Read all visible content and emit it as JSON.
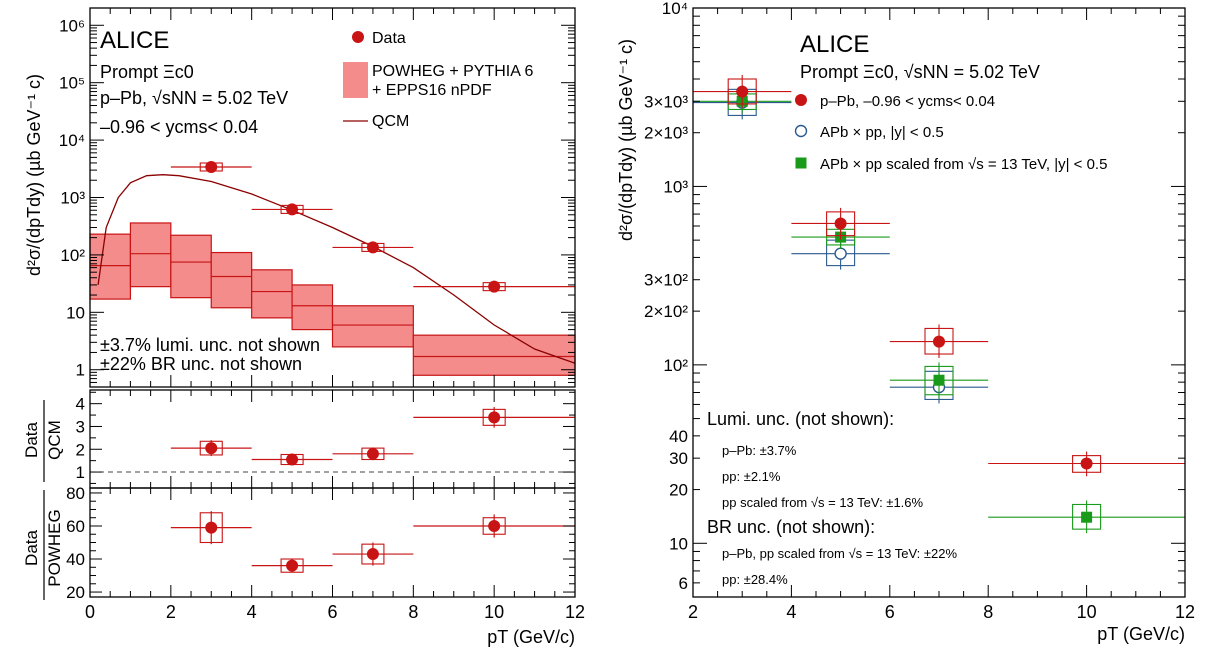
{
  "colors": {
    "data": "#c81414",
    "powheg_fill": "#f48c8c",
    "powheg_line": "#c81414",
    "qcm": "#8b0000",
    "pp": "#2c5a8f",
    "pp_scaled": "#1a9a1a",
    "ratio_ref": "#444444"
  },
  "chart_data": [
    {
      "id": "main",
      "type": "scatter",
      "title": "ALICE",
      "label_lines": [
        "Prompt Ξc0",
        "p–Pb, √sNN = 5.02 TeV",
        "–0.96 < ycms< 0.04"
      ],
      "xlabel": "",
      "ylabel": "d²σ/(dpTdy) (µb GeV⁻¹ c)",
      "xlim": [
        0,
        12
      ],
      "ylim": [
        0.5,
        2000000
      ],
      "yscale": "log",
      "yticks": [
        1,
        10,
        100,
        1000,
        10000,
        100000,
        1000000
      ],
      "ytick_labels": [
        "1",
        "10",
        "10²",
        "10³",
        "10⁴",
        "10⁵",
        "10⁶"
      ],
      "legend": [
        "Data",
        "POWHEG + PYTHIA 6",
        "+ EPPS16 nPDF",
        "QCM"
      ],
      "notes": [
        "±3.7% lumi. unc. not shown",
        "±22% BR unc. not shown"
      ],
      "series": [
        {
          "name": "Data",
          "points": [
            {
              "x": 3,
              "xlo": 2,
              "xhi": 4,
              "y": 3400
            },
            {
              "x": 5,
              "xlo": 4,
              "xhi": 6,
              "y": 620
            },
            {
              "x": 7,
              "xlo": 6,
              "xhi": 8,
              "y": 135
            },
            {
              "x": 10,
              "xlo": 8,
              "xhi": 12,
              "y": 28
            }
          ]
        },
        {
          "name": "POWHEG + PYTHIA 6 + EPPS16 nPDF",
          "bins": [
            {
              "xlo": 0,
              "xhi": 1,
              "y": 65,
              "lo": 17,
              "hi": 230
            },
            {
              "xlo": 1,
              "xhi": 2,
              "y": 105,
              "lo": 28,
              "hi": 360
            },
            {
              "xlo": 2,
              "xhi": 3,
              "y": 75,
              "lo": 18,
              "hi": 220
            },
            {
              "xlo": 3,
              "xhi": 4,
              "y": 42,
              "lo": 12,
              "hi": 110
            },
            {
              "xlo": 4,
              "xhi": 5,
              "y": 23,
              "lo": 8,
              "hi": 55
            },
            {
              "xlo": 5,
              "xhi": 6,
              "y": 13,
              "lo": 5,
              "hi": 30
            },
            {
              "xlo": 6,
              "xhi": 8,
              "y": 6,
              "lo": 2.5,
              "hi": 13
            },
            {
              "xlo": 8,
              "xhi": 12,
              "y": 1.7,
              "lo": 0.8,
              "hi": 4
            }
          ]
        },
        {
          "name": "QCM",
          "x": [
            0.2,
            0.4,
            0.7,
            1.0,
            1.4,
            1.8,
            2.2,
            3,
            4,
            5,
            6,
            7,
            8,
            9,
            10,
            11,
            12
          ],
          "y": [
            30,
            300,
            1000,
            1800,
            2400,
            2500,
            2400,
            1900,
            1150,
            600,
            300,
            140,
            60,
            20,
            6,
            2.3,
            1.3
          ]
        }
      ]
    },
    {
      "id": "ratio_qcm",
      "type": "scatter",
      "ylabel": "Data/QCM",
      "ylabel_parts": [
        "Data",
        "QCM"
      ],
      "xlim": [
        0,
        12
      ],
      "ylim": [
        0.3,
        4.6
      ],
      "yticks": [
        1,
        2,
        3,
        4
      ],
      "ytick_labels": [
        "1",
        "2",
        "3",
        "4"
      ],
      "reference_line": 1,
      "series": [
        {
          "name": "Data/QCM",
          "points": [
            {
              "x": 3,
              "xlo": 2,
              "xhi": 4,
              "y": 2.05,
              "err": 0.35,
              "sys": 0.3
            },
            {
              "x": 5,
              "xlo": 4,
              "xhi": 6,
              "y": 1.55,
              "err": 0.2,
              "sys": 0.22
            },
            {
              "x": 7,
              "xlo": 6,
              "xhi": 8,
              "y": 1.8,
              "err": 0.28,
              "sys": 0.25
            },
            {
              "x": 10,
              "xlo": 8,
              "xhi": 12,
              "y": 3.4,
              "err": 0.45,
              "sys": 0.35
            }
          ]
        }
      ]
    },
    {
      "id": "ratio_powheg",
      "type": "scatter",
      "xlabel": "pT (GeV/c)",
      "ylabel": "Data/POWHEG",
      "ylabel_parts": [
        "Data",
        "POWHEG"
      ],
      "xlim": [
        0,
        12
      ],
      "ylim": [
        17,
        83
      ],
      "yticks": [
        20,
        40,
        60,
        80
      ],
      "ytick_labels": [
        "20",
        "40",
        "60",
        "80"
      ],
      "xticks": [
        0,
        2,
        4,
        6,
        8,
        10,
        12
      ],
      "xtick_labels": [
        "0",
        "2",
        "4",
        "6",
        "8",
        "10",
        "12"
      ],
      "series": [
        {
          "name": "Data/POWHEG",
          "points": [
            {
              "x": 3,
              "xlo": 2,
              "xhi": 4,
              "y": 59,
              "err": 10,
              "sys": 9
            },
            {
              "x": 5,
              "xlo": 4,
              "xhi": 6,
              "y": 36,
              "err": 4,
              "sys": 4
            },
            {
              "x": 7,
              "xlo": 6,
              "xhi": 8,
              "y": 43,
              "err": 7,
              "sys": 6
            },
            {
              "x": 10,
              "xlo": 8,
              "xhi": 12,
              "y": 60,
              "err": 7,
              "sys": 5
            }
          ]
        }
      ]
    },
    {
      "id": "right",
      "type": "scatter",
      "title": "ALICE",
      "label_lines": [
        "Prompt Ξc0, √sNN = 5.02 TeV"
      ],
      "xlabel": "pT (GeV/c)",
      "ylabel": "d²σ/(dpTdy) (µb GeV⁻¹ c)",
      "xlim": [
        2,
        12
      ],
      "ylim": [
        5,
        10000
      ],
      "yscale": "log",
      "yticks": [
        6,
        10,
        20,
        30,
        40,
        100,
        200,
        300,
        1000,
        2000,
        3000,
        10000
      ],
      "ytick_labels": [
        "6",
        "10",
        "20",
        "30",
        "40",
        "10²",
        "2×10²",
        "3×10²",
        "10³",
        "2×10³",
        "3×10³",
        "10⁴"
      ],
      "xticks": [
        2,
        4,
        6,
        8,
        10,
        12
      ],
      "xtick_labels": [
        "2",
        "4",
        "6",
        "8",
        "10",
        "12"
      ],
      "legend": [
        "p–Pb, –0.96 < ycms< 0.04",
        "APb × pp, |y| < 0.5",
        "APb × pp scaled from √s = 13 TeV, |y| < 0.5"
      ],
      "notes_lumi": [
        "Lumi. unc. (not shown):",
        "p–Pb: ±3.7%",
        "pp: ±2.1%",
        "pp scaled from √s = 13 TeV: ±1.6%"
      ],
      "notes_br": [
        "BR unc. (not shown):",
        "p–Pb, pp scaled from √s = 13 TeV: ±22%",
        "pp: ±28.4%"
      ],
      "series": [
        {
          "name": "p–Pb",
          "points": [
            {
              "x": 3,
              "xlo": 2,
              "xhi": 4,
              "y": 3400,
              "sys_lo": 2900,
              "sys_hi": 4000
            },
            {
              "x": 5,
              "xlo": 4,
              "xhi": 6,
              "y": 620,
              "sys_lo": 530,
              "sys_hi": 720
            },
            {
              "x": 7,
              "xlo": 6,
              "xhi": 8,
              "y": 135,
              "sys_lo": 115,
              "sys_hi": 160
            },
            {
              "x": 10,
              "xlo": 8,
              "xhi": 12,
              "y": 28,
              "sys_lo": 25,
              "sys_hi": 31
            }
          ]
        },
        {
          "name": "APb × pp",
          "points": [
            {
              "x": 3,
              "xlo": 2,
              "xhi": 4,
              "y": 2950,
              "sys_lo": 2500,
              "sys_hi": 3500
            },
            {
              "x": 5,
              "xlo": 4,
              "xhi": 6,
              "y": 420,
              "sys_lo": 360,
              "sys_hi": 500
            },
            {
              "x": 7,
              "xlo": 6,
              "xhi": 8,
              "y": 75,
              "sys_lo": 64,
              "sys_hi": 92
            }
          ]
        },
        {
          "name": "APb × pp scaled",
          "points": [
            {
              "x": 3,
              "xlo": 2,
              "xhi": 4,
              "y": 3000,
              "sys_lo": 2700,
              "sys_hi": 3300
            },
            {
              "x": 5,
              "xlo": 4,
              "xhi": 6,
              "y": 520,
              "sys_lo": 470,
              "sys_hi": 575
            },
            {
              "x": 7,
              "xlo": 6,
              "xhi": 8,
              "y": 82,
              "sys_lo": 68,
              "sys_hi": 98
            },
            {
              "x": 10,
              "xlo": 8,
              "xhi": 12,
              "y": 14,
              "sys_lo": 12,
              "sys_hi": 16.5
            }
          ]
        }
      ]
    }
  ]
}
